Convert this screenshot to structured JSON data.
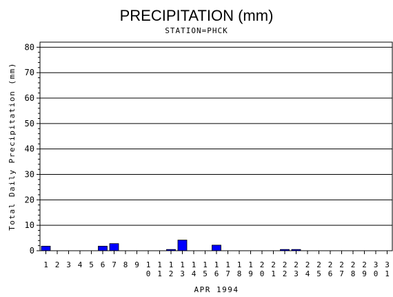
{
  "chart_data": {
    "type": "bar",
    "title": "PRECIPITATION (mm)",
    "subtitle": "STATION=PHCK",
    "xlabel": "APR 1994",
    "ylabel": "Total Daily Precipitation (mm)",
    "ylim": [
      0,
      82
    ],
    "yticks": [
      0,
      10,
      20,
      30,
      40,
      50,
      60,
      70,
      80
    ],
    "grid": true,
    "bar_color": "#0000ff",
    "categories": [
      "1",
      "2",
      "3",
      "4",
      "5",
      "6",
      "7",
      "8",
      "9",
      "10",
      "11",
      "12",
      "13",
      "14",
      "15",
      "16",
      "17",
      "18",
      "19",
      "20",
      "21",
      "22",
      "23",
      "24",
      "25",
      "26",
      "27",
      "28",
      "29",
      "30",
      "31"
    ],
    "values": [
      1.8,
      0,
      0,
      0,
      0,
      1.8,
      2.8,
      0,
      0,
      0,
      0,
      0.5,
      4.2,
      0,
      0,
      2.2,
      0,
      0,
      0,
      0,
      0,
      0.5,
      0.5,
      0,
      0,
      0,
      0,
      0,
      0,
      0,
      0
    ]
  }
}
